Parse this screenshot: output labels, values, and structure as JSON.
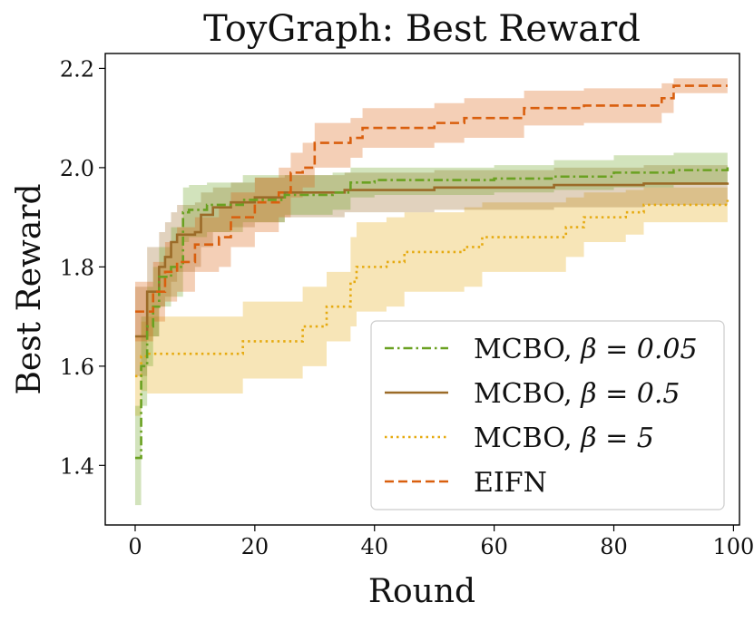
{
  "chart_data": {
    "type": "line",
    "title": "ToyGraph: Best Reward",
    "xlabel": "Round",
    "ylabel": "Best Reward",
    "xlim": [
      -5,
      101
    ],
    "ylim": [
      1.28,
      2.23
    ],
    "xticks": [
      0,
      20,
      40,
      60,
      80,
      100
    ],
    "yticks": [
      1.4,
      1.6,
      1.8,
      2.0,
      2.2
    ],
    "ytick_labels": [
      "1.4",
      "1.6",
      "1.8",
      "2.0",
      "2.2"
    ],
    "legend_position": "lower-right",
    "series": [
      {
        "name": "MCBO, β = 0.05",
        "label_text": "MCBO, ",
        "label_math": "β = 0.05",
        "color": "#6aa121",
        "style": "dashdot",
        "x": [
          0,
          1,
          2,
          3,
          4,
          6,
          8,
          9,
          12,
          18,
          25,
          33,
          36,
          40,
          60,
          70,
          80,
          90,
          99
        ],
        "y": [
          1.415,
          1.6,
          1.68,
          1.72,
          1.78,
          1.8,
          1.91,
          1.915,
          1.925,
          1.935,
          1.945,
          1.95,
          1.97,
          1.975,
          1.978,
          1.982,
          1.99,
          1.995,
          2.005
        ],
        "upper": [
          1.52,
          1.7,
          1.76,
          1.8,
          1.84,
          1.88,
          1.96,
          1.965,
          1.97,
          1.985,
          1.985,
          1.99,
          2.0,
          2.0,
          2.005,
          2.015,
          2.025,
          2.03,
          2.035
        ],
        "lower": [
          1.32,
          1.52,
          1.6,
          1.66,
          1.72,
          1.74,
          1.85,
          1.86,
          1.87,
          1.89,
          1.905,
          1.915,
          1.94,
          1.945,
          1.95,
          1.955,
          1.96,
          1.965,
          1.975
        ]
      },
      {
        "name": "MCBO, β = 0.5",
        "label_text": "MCBO, ",
        "label_math": "β = 0.5",
        "color": "#9b6b28",
        "style": "solid",
        "x": [
          0,
          2,
          4,
          5,
          6,
          7,
          10,
          11,
          13,
          16,
          20,
          25,
          35,
          50,
          70,
          85,
          99
        ],
        "y": [
          1.66,
          1.75,
          1.8,
          1.82,
          1.85,
          1.865,
          1.87,
          1.905,
          1.92,
          1.93,
          1.94,
          1.95,
          1.955,
          1.96,
          1.965,
          1.968,
          1.97
        ],
        "upper": [
          1.76,
          1.84,
          1.87,
          1.89,
          1.91,
          1.925,
          1.93,
          1.95,
          1.96,
          1.97,
          1.98,
          1.985,
          1.99,
          1.995,
          2.0,
          2.005,
          2.01
        ],
        "lower": [
          1.58,
          1.66,
          1.72,
          1.74,
          1.77,
          1.79,
          1.8,
          1.84,
          1.87,
          1.88,
          1.89,
          1.9,
          1.91,
          1.915,
          1.92,
          1.925,
          1.93
        ]
      },
      {
        "name": "MCBO, β = 5",
        "label_text": "MCBO, ",
        "label_math": "β = 5",
        "color": "#e6aa10",
        "style": "dotted",
        "x": [
          0,
          1,
          2,
          18,
          28,
          32,
          36,
          37,
          42,
          45,
          55,
          58,
          70,
          72,
          75,
          82,
          85,
          99
        ],
        "y": [
          1.58,
          1.62,
          1.625,
          1.65,
          1.68,
          1.72,
          1.77,
          1.8,
          1.81,
          1.83,
          1.84,
          1.86,
          1.86,
          1.88,
          1.9,
          1.91,
          1.925,
          1.935
        ],
        "upper": [
          1.66,
          1.69,
          1.7,
          1.73,
          1.76,
          1.79,
          1.86,
          1.89,
          1.9,
          1.91,
          1.92,
          1.93,
          1.93,
          1.94,
          1.95,
          1.955,
          1.96,
          1.965
        ],
        "lower": [
          1.5,
          1.55,
          1.545,
          1.575,
          1.6,
          1.65,
          1.68,
          1.71,
          1.72,
          1.75,
          1.76,
          1.79,
          1.79,
          1.82,
          1.85,
          1.865,
          1.89,
          1.9
        ]
      },
      {
        "name": "EIFN",
        "label_text": "EIFN",
        "label_math": "",
        "color": "#d95f0e",
        "style": "dashed",
        "x": [
          0,
          3,
          5,
          7,
          10,
          14,
          16,
          20,
          24,
          26,
          28,
          30,
          36,
          38,
          50,
          55,
          65,
          75,
          88,
          90,
          99
        ],
        "y": [
          1.71,
          1.75,
          1.79,
          1.81,
          1.845,
          1.86,
          1.9,
          1.93,
          1.95,
          1.99,
          2.0,
          2.05,
          2.06,
          2.08,
          2.09,
          2.1,
          2.12,
          2.125,
          2.14,
          2.165,
          2.165
        ],
        "upper": [
          1.77,
          1.81,
          1.85,
          1.88,
          1.9,
          1.92,
          1.95,
          1.98,
          2.0,
          2.03,
          2.05,
          2.09,
          2.1,
          2.12,
          2.13,
          2.14,
          2.155,
          2.16,
          2.17,
          2.18,
          2.18
        ],
        "lower": [
          1.65,
          1.69,
          1.73,
          1.75,
          1.79,
          1.8,
          1.84,
          1.87,
          1.9,
          1.94,
          1.96,
          2.0,
          2.02,
          2.04,
          2.05,
          2.06,
          2.085,
          2.09,
          2.11,
          2.15,
          2.15
        ]
      }
    ]
  }
}
